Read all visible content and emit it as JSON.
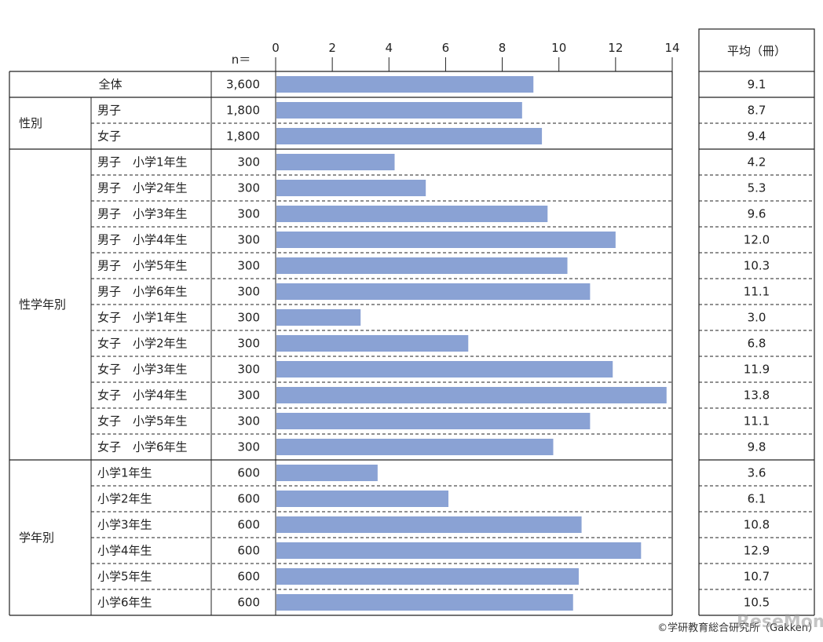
{
  "chart_data": {
    "type": "bar",
    "orientation": "horizontal",
    "xlim": [
      0,
      14
    ],
    "xticks": [
      0,
      2,
      4,
      6,
      8,
      10,
      12,
      14
    ],
    "n_label": "n＝",
    "average_header": "平均（冊）",
    "bar_color": "#8aa2d4",
    "groups": [
      {
        "label": "",
        "rows": [
          {
            "label": "全体",
            "n": "3,600",
            "value": 9.1,
            "display": "9.1"
          }
        ]
      },
      {
        "label": "性別",
        "rows": [
          {
            "label": "男子",
            "n": "1,800",
            "value": 8.7,
            "display": "8.7"
          },
          {
            "label": "女子",
            "n": "1,800",
            "value": 9.4,
            "display": "9.4"
          }
        ]
      },
      {
        "label": "性学年別",
        "rows": [
          {
            "label": "男子　小学1年生",
            "n": "300",
            "value": 4.2,
            "display": "4.2"
          },
          {
            "label": "男子　小学2年生",
            "n": "300",
            "value": 5.3,
            "display": "5.3"
          },
          {
            "label": "男子　小学3年生",
            "n": "300",
            "value": 9.6,
            "display": "9.6"
          },
          {
            "label": "男子　小学4年生",
            "n": "300",
            "value": 12.0,
            "display": "12.0"
          },
          {
            "label": "男子　小学5年生",
            "n": "300",
            "value": 10.3,
            "display": "10.3"
          },
          {
            "label": "男子　小学6年生",
            "n": "300",
            "value": 11.1,
            "display": "11.1"
          },
          {
            "label": "女子　小学1年生",
            "n": "300",
            "value": 3.0,
            "display": "3.0"
          },
          {
            "label": "女子　小学2年生",
            "n": "300",
            "value": 6.8,
            "display": "6.8"
          },
          {
            "label": "女子　小学3年生",
            "n": "300",
            "value": 11.9,
            "display": "11.9"
          },
          {
            "label": "女子　小学4年生",
            "n": "300",
            "value": 13.8,
            "display": "13.8"
          },
          {
            "label": "女子　小学5年生",
            "n": "300",
            "value": 11.1,
            "display": "11.1"
          },
          {
            "label": "女子　小学6年生",
            "n": "300",
            "value": 9.8,
            "display": "9.8"
          }
        ]
      },
      {
        "label": "学年別",
        "rows": [
          {
            "label": "小学1年生",
            "n": "600",
            "value": 3.6,
            "display": "3.6"
          },
          {
            "label": "小学2年生",
            "n": "600",
            "value": 6.1,
            "display": "6.1"
          },
          {
            "label": "小学3年生",
            "n": "600",
            "value": 10.8,
            "display": "10.8"
          },
          {
            "label": "小学4年生",
            "n": "600",
            "value": 12.9,
            "display": "12.9"
          },
          {
            "label": "小学5年生",
            "n": "600",
            "value": 10.7,
            "display": "10.7"
          },
          {
            "label": "小学6年生",
            "n": "600",
            "value": 10.5,
            "display": "10.5"
          }
        ]
      }
    ]
  },
  "credit": "©学研教育総合研究所（Gakken）",
  "watermark": "ReseMom"
}
